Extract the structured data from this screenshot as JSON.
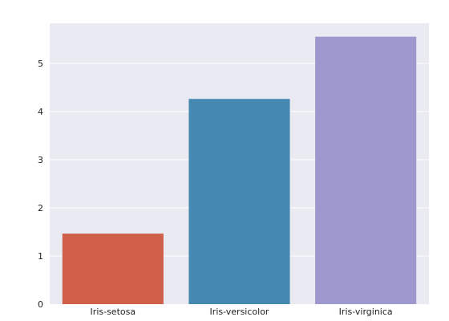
{
  "chart_data": {
    "type": "bar",
    "title": "",
    "xlabel": "",
    "ylabel": "",
    "categories": [
      "Iris-setosa",
      "Iris-versicolor",
      "Iris-virginica"
    ],
    "values": [
      1.464,
      4.26,
      5.552
    ],
    "colors": [
      "#D0604A",
      "#4588B1",
      "#9D98CD"
    ],
    "ylim": [
      0,
      5.83
    ],
    "yticks": [
      0,
      1,
      2,
      3,
      4,
      5
    ],
    "ytick_labels": [
      "0",
      "1",
      "2",
      "3",
      "4",
      "5"
    ],
    "grid": true,
    "background": "#EAEAF2",
    "grid_color": "#FFFFFF"
  }
}
